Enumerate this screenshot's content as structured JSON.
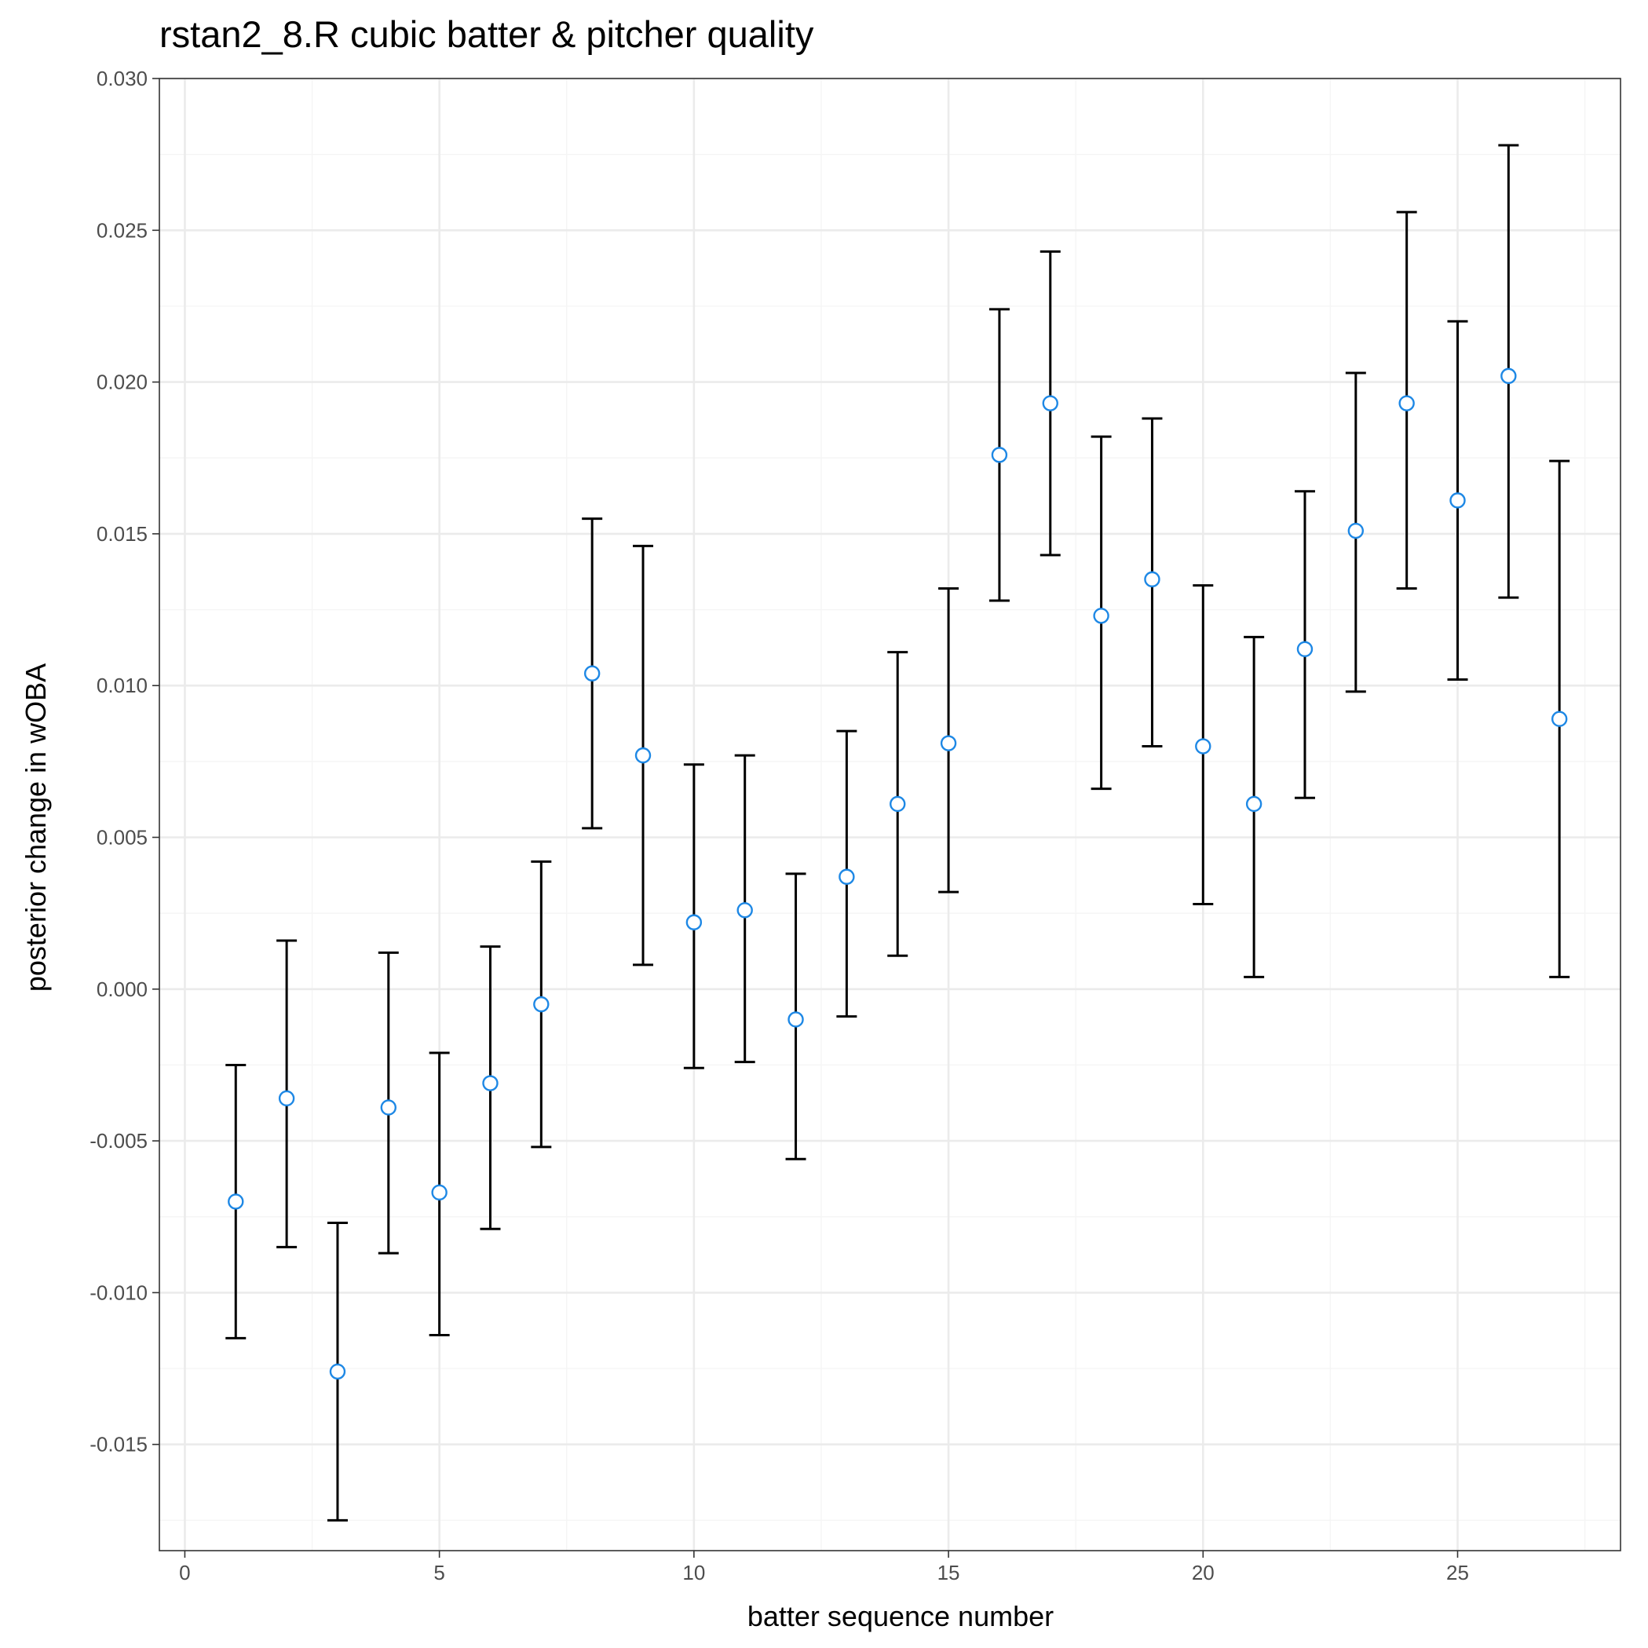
{
  "chart_data": {
    "type": "scatter",
    "title": "rstan2_8.R cubic batter & pitcher quality",
    "xlabel": "batter sequence number",
    "ylabel": "posterior change in wOBA",
    "xlim": [
      -0.5,
      28.2
    ],
    "ylim": [
      -0.0185,
      0.03
    ],
    "x_ticks": [
      0,
      5,
      10,
      15,
      20,
      25
    ],
    "x_tick_labels": [
      "0",
      "5",
      "10",
      "15",
      "20",
      "25"
    ],
    "y_ticks": [
      -0.015,
      -0.01,
      -0.005,
      0.0,
      0.005,
      0.01,
      0.015,
      0.02,
      0.025,
      0.03
    ],
    "y_tick_labels": [
      "-0.015",
      "-0.010",
      "-0.005",
      "0.000",
      "0.005",
      "0.010",
      "0.015",
      "0.020",
      "0.025",
      "0.030"
    ],
    "grid": true,
    "colors": {
      "point_stroke": "#1E88E5",
      "point_fill": "#ffffff",
      "errorbar": "#000000",
      "grid_major": "#EBEBEB",
      "grid_minor": "#F5F5F5"
    },
    "series": [
      {
        "points": [
          {
            "x": 1,
            "y": -0.007,
            "lo": -0.0115,
            "hi": -0.0025
          },
          {
            "x": 2,
            "y": -0.0036,
            "lo": -0.0085,
            "hi": 0.0016
          },
          {
            "x": 3,
            "y": -0.0126,
            "lo": -0.0175,
            "hi": -0.0077
          },
          {
            "x": 4,
            "y": -0.0039,
            "lo": -0.0087,
            "hi": 0.0012
          },
          {
            "x": 5,
            "y": -0.0067,
            "lo": -0.0114,
            "hi": -0.0021
          },
          {
            "x": 6,
            "y": -0.0031,
            "lo": -0.0079,
            "hi": 0.0014
          },
          {
            "x": 7,
            "y": -0.0005,
            "lo": -0.0052,
            "hi": 0.0042
          },
          {
            "x": 8,
            "y": 0.0104,
            "lo": 0.0053,
            "hi": 0.0155
          },
          {
            "x": 9,
            "y": 0.0077,
            "lo": 0.0008,
            "hi": 0.0146
          },
          {
            "x": 10,
            "y": 0.0022,
            "lo": -0.0026,
            "hi": 0.0074
          },
          {
            "x": 11,
            "y": 0.0026,
            "lo": -0.0024,
            "hi": 0.0077
          },
          {
            "x": 12,
            "y": -0.001,
            "lo": -0.0056,
            "hi": 0.0038
          },
          {
            "x": 13,
            "y": 0.0037,
            "lo": -0.0009,
            "hi": 0.0085
          },
          {
            "x": 14,
            "y": 0.0061,
            "lo": 0.0011,
            "hi": 0.0111
          },
          {
            "x": 15,
            "y": 0.0081,
            "lo": 0.0032,
            "hi": 0.0132
          },
          {
            "x": 16,
            "y": 0.0176,
            "lo": 0.0128,
            "hi": 0.0224
          },
          {
            "x": 17,
            "y": 0.0193,
            "lo": 0.0143,
            "hi": 0.0243
          },
          {
            "x": 18,
            "y": 0.0123,
            "lo": 0.0066,
            "hi": 0.0182
          },
          {
            "x": 19,
            "y": 0.0135,
            "lo": 0.008,
            "hi": 0.0188
          },
          {
            "x": 20,
            "y": 0.008,
            "lo": 0.0028,
            "hi": 0.0133
          },
          {
            "x": 21,
            "y": 0.0061,
            "lo": 0.0004,
            "hi": 0.0116
          },
          {
            "x": 22,
            "y": 0.0112,
            "lo": 0.0063,
            "hi": 0.0164
          },
          {
            "x": 23,
            "y": 0.0151,
            "lo": 0.0098,
            "hi": 0.0203
          },
          {
            "x": 24,
            "y": 0.0193,
            "lo": 0.0132,
            "hi": 0.0256
          },
          {
            "x": 25,
            "y": 0.0161,
            "lo": 0.0102,
            "hi": 0.022
          },
          {
            "x": 26,
            "y": 0.0202,
            "lo": 0.0129,
            "hi": 0.0278
          },
          {
            "x": 27,
            "y": 0.0089,
            "lo": 0.0004,
            "hi": 0.0174
          }
        ]
      }
    ]
  }
}
